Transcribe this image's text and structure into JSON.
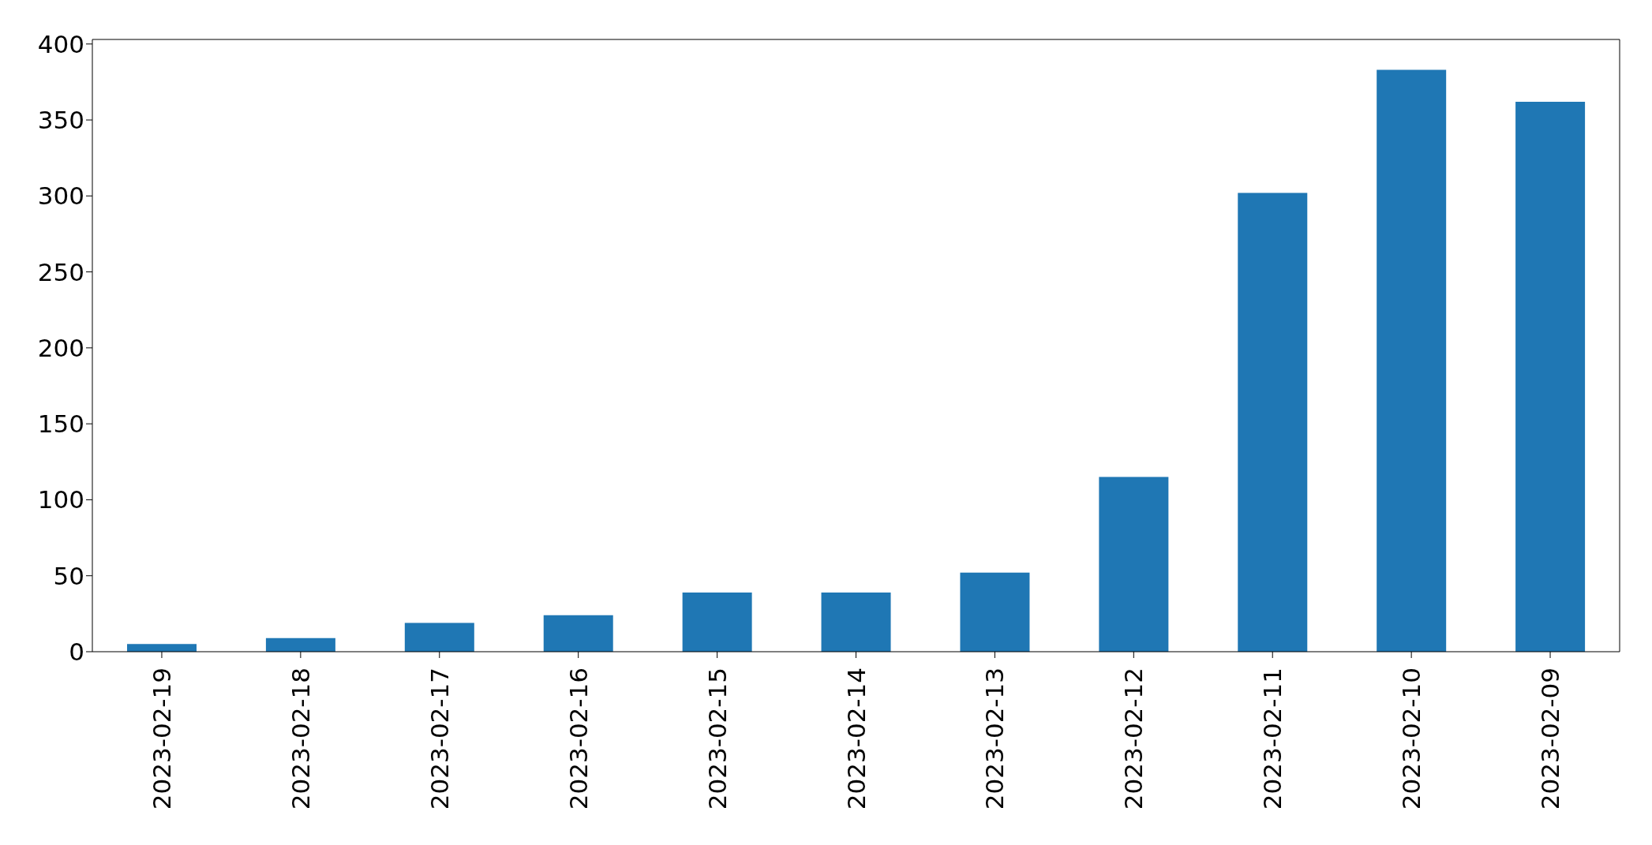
{
  "chart_data": {
    "type": "bar",
    "categories": [
      "2023-02-19",
      "2023-02-18",
      "2023-02-17",
      "2023-02-16",
      "2023-02-15",
      "2023-02-14",
      "2023-02-13",
      "2023-02-12",
      "2023-02-11",
      "2023-02-10",
      "2023-02-09"
    ],
    "values": [
      5,
      9,
      19,
      24,
      39,
      39,
      52,
      115,
      302,
      383,
      362
    ],
    "color": "#1f77b4",
    "ylim": [
      0,
      403
    ],
    "yticks": [
      0,
      50,
      100,
      150,
      200,
      250,
      300,
      350,
      400
    ],
    "grid": false
  }
}
